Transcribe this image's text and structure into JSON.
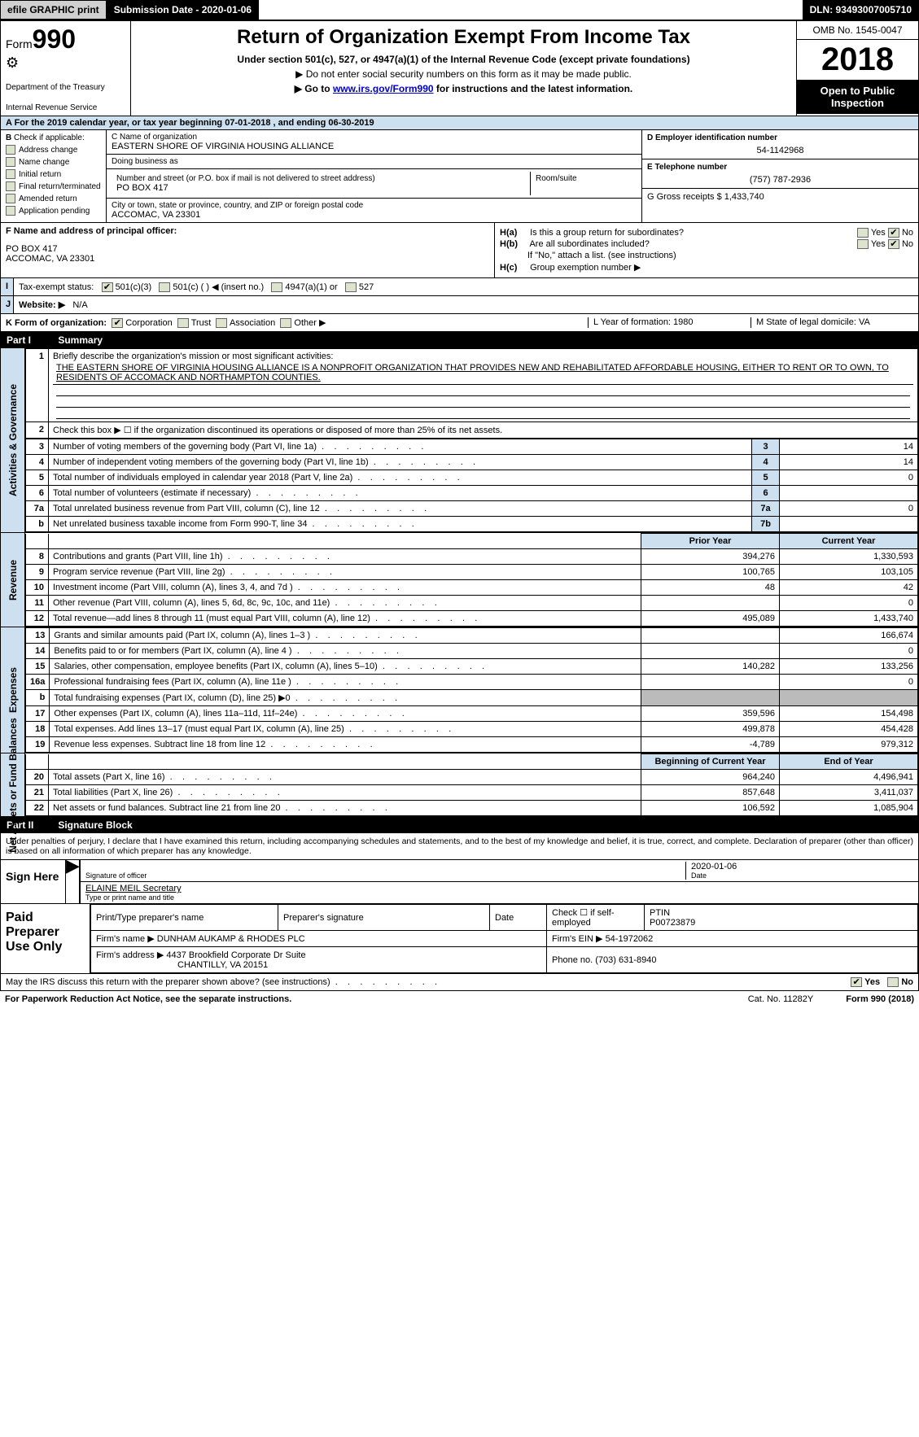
{
  "topbar": {
    "efile": "efile GRAPHIC print",
    "subdate_label": "Submission Date - 2020-01-06",
    "dln": "DLN: 93493007005710"
  },
  "header": {
    "form_prefix": "Form",
    "form_number": "990",
    "irs_glyph": "⚙",
    "dept": "Department of the Treasury",
    "irs": "Internal Revenue Service",
    "title": "Return of Organization Exempt From Income Tax",
    "sub1": "Under section 501(c), 527, or 4947(a)(1) of the Internal Revenue Code (except private foundations)",
    "sub2": "▶ Do not enter social security numbers on this form as it may be made public.",
    "sub3_pre": "▶ Go to ",
    "sub3_link": "www.irs.gov/Form990",
    "sub3_post": " for instructions and the latest information.",
    "omb": "OMB No. 1545-0047",
    "year": "2018",
    "open": "Open to Public Inspection"
  },
  "rowA": "A   For the 2019 calendar year, or tax year beginning 07-01-2018      , and ending 06-30-2019",
  "colB": {
    "title": "B",
    "check": "Check if applicable:",
    "items": [
      "Address change",
      "Name change",
      "Initial return",
      "Final return/terminated",
      "Amended return",
      "Application pending"
    ]
  },
  "colC": {
    "name_label": "C Name of organization",
    "name_val": "EASTERN SHORE OF VIRGINIA HOUSING ALLIANCE",
    "dba_label": "Doing business as",
    "dba_val": "",
    "street_label": "Number and street (or P.O. box if mail is not delivered to street address)",
    "street_val": "PO BOX 417",
    "room_label": "Room/suite",
    "city_label": "City or town, state or province, country, and ZIP or foreign postal code",
    "city_val": "ACCOMAC, VA  23301"
  },
  "colDEG": {
    "d_label": "D Employer identification number",
    "d_val": "54-1142968",
    "e_label": "E Telephone number",
    "e_val": "(757) 787-2936",
    "g_label": "G Gross receipts $ 1,433,740"
  },
  "rowF": {
    "label": "F  Name and address of principal officer:",
    "line1": "PO BOX 417",
    "line2": "ACCOMAC, VA  23301"
  },
  "rowH": {
    "ha": "H(a)",
    "ha_text": "Is this a group return for subordinates?",
    "hb": "H(b)",
    "hb_text": "Are all subordinates included?",
    "hb_note": "If \"No,\" attach a list. (see instructions)",
    "hc": "H(c)",
    "hc_text": "Group exemption number ▶",
    "yes": "Yes",
    "no": "No"
  },
  "rowI": {
    "label": "I",
    "text": "Tax-exempt status:",
    "opts": [
      "501(c)(3)",
      "501(c) (  ) ◀ (insert no.)",
      "4947(a)(1) or",
      "527"
    ]
  },
  "rowJ": {
    "label": "J",
    "text": "Website: ▶",
    "val": "N/A"
  },
  "rowK": {
    "label": "K Form of organization:",
    "opts": [
      "Corporation",
      "Trust",
      "Association",
      "Other ▶"
    ],
    "l": "L Year of formation: 1980",
    "m": "M State of legal domicile: VA"
  },
  "part1": {
    "title": "Part I",
    "name": "Summary",
    "q1_label": "1",
    "q1_text": "Briefly describe the organization's mission or most significant activities:",
    "q1_val": "THE EASTERN SHORE OF VIRGINIA HOUSING ALLIANCE IS A NONPROFIT ORGANIZATION THAT PROVIDES NEW AND REHABILITATED AFFORDABLE HOUSING, EITHER TO RENT OR TO OWN, TO RESIDENTS OF ACCOMACK AND NORTHAMPTON COUNTIES.",
    "q2_label": "2",
    "q2_text": "Check this box ▶ ☐ if the organization discontinued its operations or disposed of more than 25% of its net assets.",
    "sec_ag": "Activities & Governance",
    "rows_ag": [
      {
        "n": "3",
        "d": "Number of voting members of the governing body (Part VI, line 1a)",
        "r": "3",
        "v": "14"
      },
      {
        "n": "4",
        "d": "Number of independent voting members of the governing body (Part VI, line 1b)",
        "r": "4",
        "v": "14"
      },
      {
        "n": "5",
        "d": "Total number of individuals employed in calendar year 2018 (Part V, line 2a)",
        "r": "5",
        "v": "0"
      },
      {
        "n": "6",
        "d": "Total number of volunteers (estimate if necessary)",
        "r": "6",
        "v": ""
      },
      {
        "n": "7a",
        "d": "Total unrelated business revenue from Part VIII, column (C), line 12",
        "r": "7a",
        "v": "0"
      },
      {
        "n": "b",
        "d": "Net unrelated business taxable income from Form 990-T, line 34",
        "r": "7b",
        "v": ""
      }
    ],
    "prior_hdr": "Prior Year",
    "current_hdr": "Current Year",
    "sec_rev": "Revenue",
    "rows_rev": [
      {
        "n": "8",
        "d": "Contributions and grants (Part VIII, line 1h)",
        "p": "394,276",
        "c": "1,330,593"
      },
      {
        "n": "9",
        "d": "Program service revenue (Part VIII, line 2g)",
        "p": "100,765",
        "c": "103,105"
      },
      {
        "n": "10",
        "d": "Investment income (Part VIII, column (A), lines 3, 4, and 7d )",
        "p": "48",
        "c": "42"
      },
      {
        "n": "11",
        "d": "Other revenue (Part VIII, column (A), lines 5, 6d, 8c, 9c, 10c, and 11e)",
        "p": "",
        "c": "0"
      },
      {
        "n": "12",
        "d": "Total revenue—add lines 8 through 11 (must equal Part VIII, column (A), line 12)",
        "p": "495,089",
        "c": "1,433,740"
      }
    ],
    "sec_exp": "Expenses",
    "rows_exp": [
      {
        "n": "13",
        "d": "Grants and similar amounts paid (Part IX, column (A), lines 1–3 )",
        "p": "",
        "c": "166,674"
      },
      {
        "n": "14",
        "d": "Benefits paid to or for members (Part IX, column (A), line 4 )",
        "p": "",
        "c": "0"
      },
      {
        "n": "15",
        "d": "Salaries, other compensation, employee benefits (Part IX, column (A), lines 5–10)",
        "p": "140,282",
        "c": "133,256"
      },
      {
        "n": "16a",
        "d": "Professional fundraising fees (Part IX, column (A), line 11e )",
        "p": "",
        "c": "0"
      },
      {
        "n": "b",
        "d": "Total fundraising expenses (Part IX, column (D), line 25) ▶0",
        "p": "SHADE",
        "c": "SHADE"
      },
      {
        "n": "17",
        "d": "Other expenses (Part IX, column (A), lines 11a–11d, 11f–24e)",
        "p": "359,596",
        "c": "154,498"
      },
      {
        "n": "18",
        "d": "Total expenses. Add lines 13–17 (must equal Part IX, column (A), line 25)",
        "p": "499,878",
        "c": "454,428"
      },
      {
        "n": "19",
        "d": "Revenue less expenses. Subtract line 18 from line 12",
        "p": "-4,789",
        "c": "979,312"
      }
    ],
    "begin_hdr": "Beginning of Current Year",
    "end_hdr": "End of Year",
    "sec_na": "Net Assets or Fund Balances",
    "rows_na": [
      {
        "n": "20",
        "d": "Total assets (Part X, line 16)",
        "p": "964,240",
        "c": "4,496,941"
      },
      {
        "n": "21",
        "d": "Total liabilities (Part X, line 26)",
        "p": "857,648",
        "c": "3,411,037"
      },
      {
        "n": "22",
        "d": "Net assets or fund balances. Subtract line 21 from line 20",
        "p": "106,592",
        "c": "1,085,904"
      }
    ]
  },
  "part2": {
    "title": "Part II",
    "name": "Signature Block",
    "perjury": "Under penalties of perjury, I declare that I have examined this return, including accompanying schedules and statements, and to the best of my knowledge and belief, it is true, correct, and complete. Declaration of preparer (other than officer) is based on all information of which preparer has any knowledge.",
    "sign_here": "Sign Here",
    "sig_officer": "Signature of officer",
    "sig_date_val": "2020-01-06",
    "sig_date": "Date",
    "name_title_val": "ELAINE MEIL Secretary",
    "name_title": "Type or print name and title",
    "paid": "Paid Preparer Use Only",
    "prep_name_lbl": "Print/Type preparer's name",
    "prep_sig_lbl": "Preparer's signature",
    "prep_date_lbl": "Date",
    "prep_check": "Check ☐ if self-employed",
    "ptin_lbl": "PTIN",
    "ptin_val": "P00723879",
    "firm_name_lbl": "Firm's name    ▶",
    "firm_name_val": "DUNHAM AUKAMP & RHODES PLC",
    "firm_ein_lbl": "Firm's EIN ▶",
    "firm_ein_val": "54-1972062",
    "firm_addr_lbl": "Firm's address ▶",
    "firm_addr_val1": "4437 Brookfield Corporate Dr Suite",
    "firm_addr_val2": "CHANTILLY, VA  20151",
    "phone_lbl": "Phone no.",
    "phone_val": "(703) 631-8940",
    "discuss": "May the IRS discuss this return with the preparer shown above? (see instructions)",
    "discuss_yes": "Yes",
    "discuss_no": "No"
  },
  "footer": {
    "left": "For Paperwork Reduction Act Notice, see the separate instructions.",
    "mid": "Cat. No. 11282Y",
    "right": "Form 990 (2018)"
  },
  "colors": {
    "header_blue": "#cce0f0",
    "black": "#000000",
    "shade": "#bbbbbb",
    "chk_bg": "#dde4ce"
  }
}
